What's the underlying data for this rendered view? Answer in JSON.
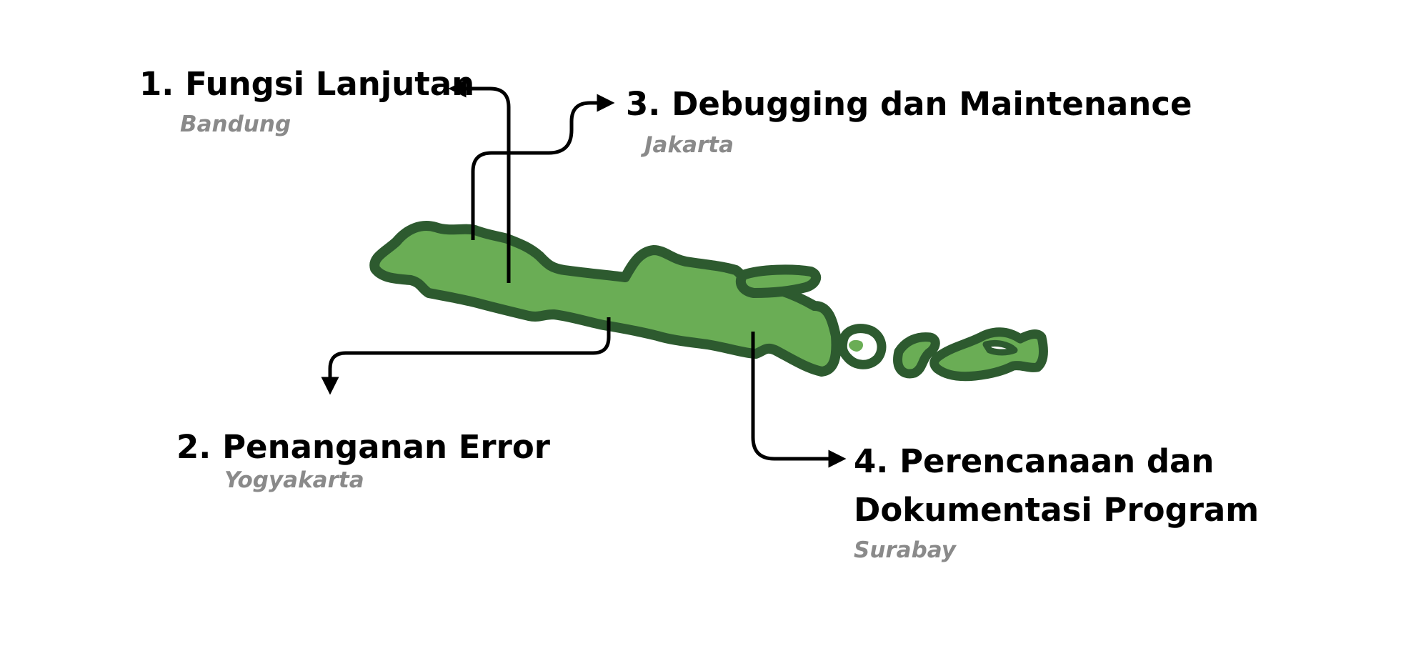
{
  "map": {
    "region": "Java island",
    "land_color": "#6aad55",
    "border_color": "#2d5a2f",
    "connector_color": "#000000",
    "city_color": "#8a8a8a"
  },
  "callouts": [
    {
      "title": "1. Fungsi Lanjutan",
      "city": "Bandung"
    },
    {
      "title": "2. Penanganan Error",
      "city": "Yogyakarta"
    },
    {
      "title": "3. Debugging dan Maintenance",
      "city": "Jakarta"
    },
    {
      "title": "4. Perencanaan dan Dokumentasi Program",
      "city": "Surabay"
    }
  ]
}
